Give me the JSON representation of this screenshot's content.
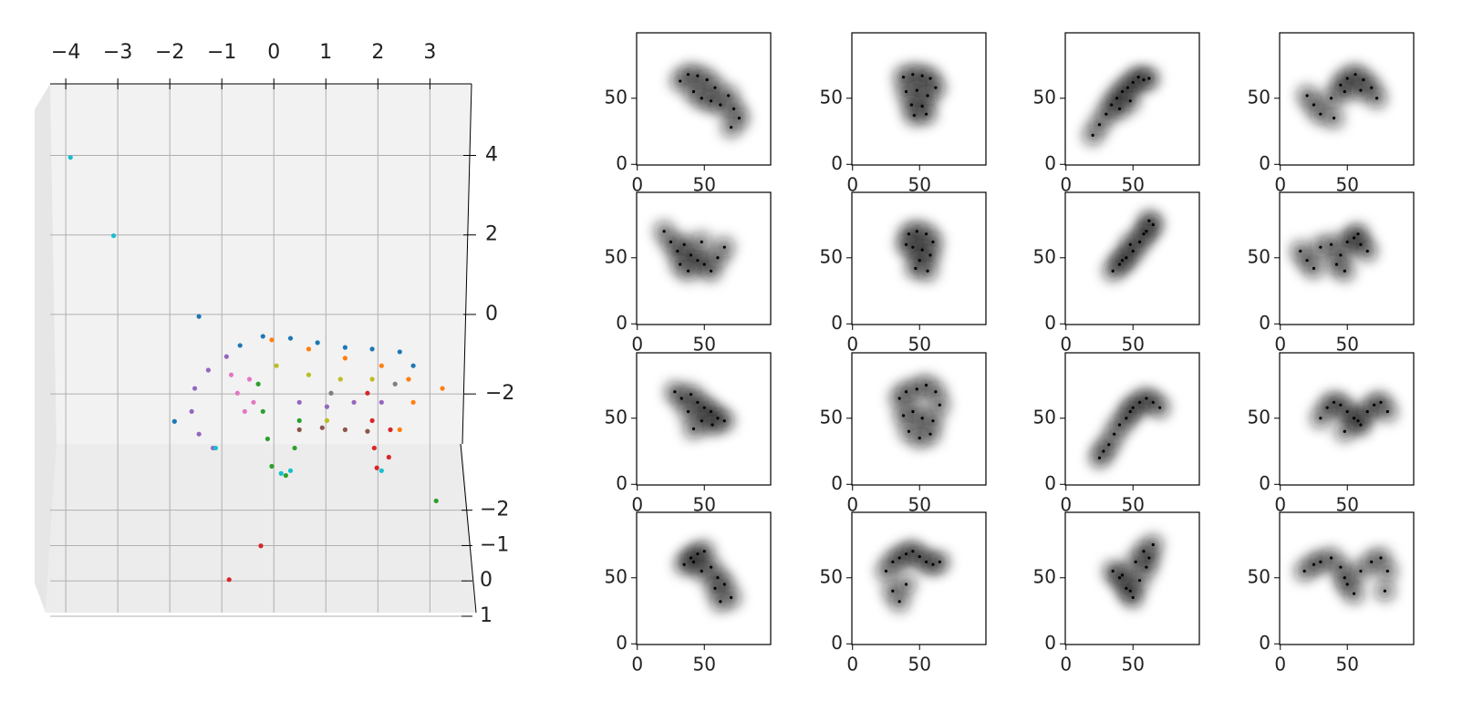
{
  "chart_data": [
    {
      "type": "scatter3d",
      "xlim": [
        -4.3,
        3.8
      ],
      "xticks": [
        {
          "value": -4,
          "label": "−4"
        },
        {
          "value": -3,
          "label": "−3"
        },
        {
          "value": -2,
          "label": "−2"
        },
        {
          "value": -1,
          "label": "−1"
        },
        0,
        1,
        2,
        3
      ],
      "zlim": [
        -7.5,
        5.8
      ],
      "zticks": [
        4,
        2,
        0,
        {
          "value": -2,
          "label": "−2"
        }
      ],
      "ylim": [
        -3.1,
        1
      ],
      "yticks": [
        {
          "value": -2,
          "label": "−2"
        },
        {
          "value": -1,
          "label": "−1"
        },
        0,
        1
      ],
      "grid": true,
      "series": [
        {
          "color": "#1f77b4",
          "x": [
            -0.65,
            -0.21,
            0.32,
            0.84,
            1.37,
            1.89,
            2.42,
            2.68,
            -1.44,
            -1.91
          ],
          "z": [
            -0.78,
            -0.55,
            -0.6,
            -0.71,
            -0.83,
            -0.87,
            -0.94,
            -1.29,
            -0.05,
            -2.69
          ]
        },
        {
          "color": "#ff7f0e",
          "x": [
            -0.04,
            0.67,
            1.37,
            2.07,
            2.59,
            2.68,
            2.42,
            3.24
          ],
          "z": [
            -0.64,
            -0.87,
            -1.1,
            -1.29,
            -1.63,
            -2.21,
            -2.9,
            -1.86
          ]
        },
        {
          "color": "#9467bd",
          "x": [
            -0.91,
            -1.26,
            -1.52,
            -1.58,
            -1.44,
            -1.17,
            0.49,
            1.02,
            1.54,
            2.07
          ],
          "z": [
            -1.06,
            -1.4,
            -1.86,
            -2.44,
            -3.01,
            -3.36,
            -2.21,
            -2.32,
            -2.21,
            -2.21
          ]
        },
        {
          "color": "#2ca02c",
          "x": [
            -0.3,
            -0.21,
            -0.12,
            -0.04,
            0.23,
            0.4,
            0.49,
            3.12
          ],
          "z": [
            -1.75,
            -2.44,
            -3.13,
            -3.82,
            -4.05,
            -3.36,
            -2.67,
            -4.69
          ]
        },
        {
          "color": "#d62728",
          "x": [
            1.8,
            1.89,
            1.93,
            1.98,
            2.21,
            2.24,
            -0.25,
            -0.86
          ],
          "z": [
            -1.98,
            -2.67,
            -3.36,
            -3.86,
            -3.59,
            -2.9,
            -5.82,
            -6.67
          ]
        },
        {
          "color": "#8c564b",
          "x": [
            0.49,
            0.93,
            1.37,
            1.8
          ],
          "z": [
            -2.9,
            -2.85,
            -2.9,
            -2.94
          ]
        },
        {
          "color": "#e377c2",
          "x": [
            -0.82,
            -0.7,
            -0.56,
            -0.39,
            -0.47
          ],
          "z": [
            -1.52,
            -1.98,
            -2.44,
            -2.21,
            -1.63
          ]
        },
        {
          "color": "#bcbd22",
          "x": [
            0.05,
            0.67,
            1.28,
            1.89,
            1.02
          ],
          "z": [
            -1.29,
            -1.52,
            -1.63,
            -1.63,
            -2.67
          ]
        },
        {
          "color": "#7f7f7f",
          "x": [
            2.33,
            1.1
          ],
          "z": [
            -1.75,
            -1.98
          ]
        },
        {
          "color": "#17becf",
          "x": [
            0.14,
            0.32,
            2.07,
            -1.12,
            -3.91,
            -3.08
          ],
          "z": [
            -4.0,
            -3.93,
            -3.93,
            -3.36,
            3.95,
            1.98
          ]
        }
      ]
    },
    {
      "type": "image-grid",
      "xlim": [
        -0.5,
        99.5
      ],
      "ylim": [
        -0.5,
        99.5
      ],
      "xticks": [
        0,
        50
      ],
      "yticks": [
        0,
        50
      ],
      "panels": [
        {
          "x": [
            32,
            38,
            45,
            52,
            58,
            42,
            48,
            55,
            62,
            68,
            72,
            76,
            70
          ],
          "y": [
            63,
            68,
            67,
            64,
            58,
            55,
            50,
            48,
            45,
            52,
            42,
            35,
            28
          ]
        },
        {
          "x": [
            38,
            45,
            52,
            58,
            62,
            40,
            48,
            56,
            44,
            52,
            46,
            55
          ],
          "y": [
            66,
            68,
            67,
            65,
            58,
            55,
            56,
            52,
            45,
            44,
            37,
            38
          ]
        },
        {
          "x": [
            20,
            25,
            30,
            34,
            38,
            42,
            46,
            50,
            54,
            58,
            62,
            48,
            40
          ],
          "y": [
            22,
            30,
            38,
            45,
            50,
            55,
            58,
            62,
            66,
            64,
            65,
            48,
            42
          ]
        },
        {
          "x": [
            20,
            25,
            30,
            38,
            45,
            50,
            56,
            62,
            68,
            72,
            48,
            40,
            60
          ],
          "y": [
            52,
            45,
            38,
            50,
            60,
            65,
            68,
            64,
            58,
            50,
            55,
            35,
            56
          ]
        },
        {
          "x": [
            20,
            25,
            30,
            35,
            40,
            45,
            50,
            55,
            60,
            65,
            32,
            48,
            38
          ],
          "y": [
            70,
            62,
            55,
            60,
            52,
            48,
            45,
            40,
            50,
            58,
            45,
            62,
            40
          ]
        },
        {
          "x": [
            42,
            48,
            55,
            60,
            45,
            52,
            58,
            50,
            47,
            56,
            40
          ],
          "y": [
            68,
            70,
            68,
            62,
            58,
            56,
            52,
            48,
            42,
            40,
            60
          ]
        },
        {
          "x": [
            35,
            40,
            45,
            50,
            55,
            60,
            62,
            65,
            48,
            42,
            58
          ],
          "y": [
            40,
            45,
            50,
            55,
            62,
            70,
            78,
            75,
            60,
            48,
            68
          ]
        },
        {
          "x": [
            15,
            20,
            25,
            30,
            38,
            45,
            50,
            55,
            60,
            65,
            48,
            42,
            58
          ],
          "y": [
            55,
            48,
            42,
            58,
            60,
            52,
            62,
            65,
            60,
            55,
            40,
            45,
            68
          ]
        },
        {
          "x": [
            28,
            33,
            40,
            45,
            50,
            55,
            60,
            65,
            38,
            48,
            56,
            42
          ],
          "y": [
            70,
            65,
            68,
            62,
            58,
            55,
            50,
            48,
            55,
            48,
            45,
            42
          ]
        },
        {
          "x": [
            35,
            40,
            48,
            55,
            62,
            65,
            38,
            45,
            52,
            60,
            42,
            50,
            58
          ],
          "y": [
            65,
            70,
            72,
            75,
            70,
            60,
            52,
            55,
            50,
            48,
            40,
            35,
            38
          ]
        },
        {
          "x": [
            25,
            28,
            32,
            36,
            40,
            45,
            50,
            55,
            60,
            65,
            70,
            48
          ],
          "y": [
            20,
            25,
            30,
            38,
            45,
            50,
            58,
            62,
            65,
            62,
            58,
            55
          ]
        },
        {
          "x": [
            30,
            35,
            40,
            45,
            50,
            55,
            60,
            65,
            70,
            75,
            80,
            48,
            58
          ],
          "y": [
            50,
            58,
            62,
            60,
            55,
            50,
            45,
            55,
            60,
            62,
            55,
            40,
            48
          ]
        },
        {
          "x": [
            35,
            40,
            45,
            50,
            55,
            60,
            65,
            70,
            48,
            58,
            62,
            42
          ],
          "y": [
            60,
            65,
            68,
            70,
            58,
            50,
            45,
            35,
            55,
            42,
            32,
            62
          ]
        },
        {
          "x": [
            25,
            30,
            35,
            40,
            45,
            50,
            55,
            60,
            65,
            30,
            35,
            40
          ],
          "y": [
            55,
            62,
            65,
            68,
            70,
            66,
            62,
            60,
            62,
            40,
            32,
            45
          ]
        },
        {
          "x": [
            35,
            40,
            45,
            50,
            55,
            60,
            62,
            65,
            48,
            52,
            42,
            58
          ],
          "y": [
            55,
            50,
            42,
            35,
            48,
            58,
            65,
            75,
            40,
            62,
            52,
            70
          ]
        },
        {
          "x": [
            18,
            25,
            30,
            38,
            45,
            50,
            55,
            60,
            68,
            75,
            80,
            48,
            78
          ],
          "y": [
            55,
            60,
            62,
            65,
            58,
            45,
            38,
            55,
            62,
            65,
            55,
            50,
            40
          ]
        }
      ]
    }
  ]
}
